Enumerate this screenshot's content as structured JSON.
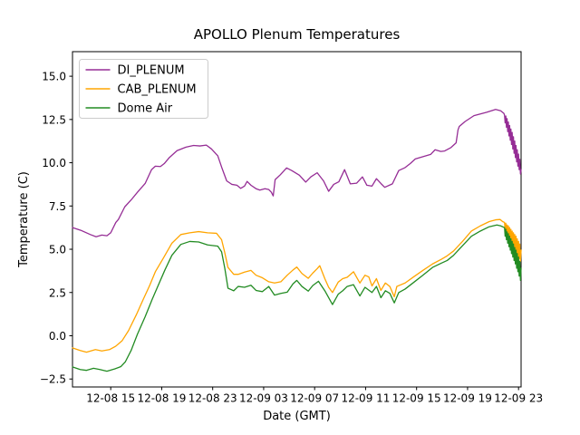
{
  "chart_data": {
    "type": "line",
    "title": "APOLLO Plenum Temperatures",
    "xlabel": "Date (GMT)",
    "ylabel": "Temperature (C)",
    "grid": false,
    "legend_position": "upper left",
    "x_unit": "hours after 12-08 00:00 GMT",
    "xlim": [
      12.0,
      47.2
    ],
    "ylim": [
      -2.96,
      16.42
    ],
    "x_ticks": [
      {
        "value": 15,
        "label": "12-08 15"
      },
      {
        "value": 19,
        "label": "12-08 19"
      },
      {
        "value": 23,
        "label": "12-08 23"
      },
      {
        "value": 27,
        "label": "12-09 03"
      },
      {
        "value": 31,
        "label": "12-09 07"
      },
      {
        "value": 35,
        "label": "12-09 11"
      },
      {
        "value": 39,
        "label": "12-09 15"
      },
      {
        "value": 43,
        "label": "12-09 19"
      },
      {
        "value": 47,
        "label": "12-09 23"
      }
    ],
    "y_ticks": [
      {
        "value": 15.0,
        "label": "15.0"
      },
      {
        "value": 12.5,
        "label": "12.5"
      },
      {
        "value": 10.0,
        "label": "10.0"
      },
      {
        "value": 7.5,
        "label": "7.5"
      },
      {
        "value": 5.0,
        "label": "5.0"
      },
      {
        "value": 2.5,
        "label": "2.5"
      },
      {
        "value": 0.0,
        "label": "0.0"
      },
      {
        "value": -2.5,
        "label": "−2.5"
      }
    ],
    "series": [
      {
        "name": "DI_PLENUM",
        "color": "#952d95",
        "points": [
          [
            12.0,
            6.25
          ],
          [
            12.7,
            6.08
          ],
          [
            13.4,
            5.85
          ],
          [
            13.85,
            5.72
          ],
          [
            14.3,
            5.82
          ],
          [
            14.7,
            5.78
          ],
          [
            15.0,
            5.95
          ],
          [
            15.4,
            6.55
          ],
          [
            15.6,
            6.72
          ],
          [
            16.1,
            7.45
          ],
          [
            16.6,
            7.85
          ],
          [
            17.1,
            8.3
          ],
          [
            17.7,
            8.8
          ],
          [
            18.2,
            9.6
          ],
          [
            18.5,
            9.8
          ],
          [
            18.9,
            9.78
          ],
          [
            19.2,
            9.95
          ],
          [
            19.6,
            10.3
          ],
          [
            20.2,
            10.7
          ],
          [
            20.9,
            10.9
          ],
          [
            21.5,
            11.0
          ],
          [
            22.0,
            10.97
          ],
          [
            22.5,
            11.02
          ],
          [
            22.9,
            10.8
          ],
          [
            23.4,
            10.4
          ],
          [
            23.7,
            9.75
          ],
          [
            24.1,
            8.95
          ],
          [
            24.5,
            8.75
          ],
          [
            24.9,
            8.7
          ],
          [
            25.2,
            8.52
          ],
          [
            25.5,
            8.65
          ],
          [
            25.7,
            8.92
          ],
          [
            26.0,
            8.7
          ],
          [
            26.4,
            8.5
          ],
          [
            26.7,
            8.42
          ],
          [
            27.1,
            8.5
          ],
          [
            27.4,
            8.45
          ],
          [
            27.6,
            8.3
          ],
          [
            27.75,
            8.08
          ],
          [
            27.9,
            9.02
          ],
          [
            28.3,
            9.3
          ],
          [
            28.8,
            9.7
          ],
          [
            29.2,
            9.55
          ],
          [
            29.8,
            9.28
          ],
          [
            30.3,
            8.88
          ],
          [
            30.7,
            9.18
          ],
          [
            31.2,
            9.42
          ],
          [
            31.7,
            8.95
          ],
          [
            32.1,
            8.35
          ],
          [
            32.5,
            8.75
          ],
          [
            32.9,
            8.9
          ],
          [
            33.35,
            9.6
          ],
          [
            33.8,
            8.78
          ],
          [
            34.3,
            8.82
          ],
          [
            34.75,
            9.18
          ],
          [
            35.1,
            8.7
          ],
          [
            35.5,
            8.65
          ],
          [
            35.85,
            9.08
          ],
          [
            36.2,
            8.8
          ],
          [
            36.5,
            8.58
          ],
          [
            37.1,
            8.78
          ],
          [
            37.6,
            9.55
          ],
          [
            38.1,
            9.72
          ],
          [
            38.5,
            9.95
          ],
          [
            38.9,
            10.22
          ],
          [
            39.5,
            10.35
          ],
          [
            40.1,
            10.48
          ],
          [
            40.45,
            10.75
          ],
          [
            40.9,
            10.65
          ],
          [
            41.2,
            10.68
          ],
          [
            41.7,
            10.88
          ],
          [
            42.1,
            11.15
          ],
          [
            42.25,
            11.9
          ],
          [
            42.35,
            12.1
          ],
          [
            42.8,
            12.38
          ],
          [
            43.5,
            12.72
          ],
          [
            44.5,
            12.92
          ],
          [
            45.2,
            13.08
          ],
          [
            45.6,
            13.0
          ],
          [
            45.85,
            12.85
          ],
          [
            45.9,
            12.75
          ],
          [
            45.95,
            12.3
          ],
          [
            46.0,
            12.7
          ],
          [
            46.05,
            12.05
          ],
          [
            46.1,
            12.55
          ],
          [
            46.15,
            11.8
          ],
          [
            46.2,
            12.35
          ],
          [
            46.25,
            11.55
          ],
          [
            46.3,
            12.15
          ],
          [
            46.35,
            11.3
          ],
          [
            46.4,
            11.95
          ],
          [
            46.45,
            11.05
          ],
          [
            46.5,
            11.75
          ],
          [
            46.55,
            10.8
          ],
          [
            46.6,
            11.5
          ],
          [
            46.65,
            10.55
          ],
          [
            46.7,
            11.25
          ],
          [
            46.75,
            10.3
          ],
          [
            46.8,
            11.0
          ],
          [
            46.85,
            10.05
          ],
          [
            46.9,
            10.75
          ],
          [
            46.95,
            9.8
          ],
          [
            47.0,
            10.5
          ],
          [
            47.05,
            9.6
          ],
          [
            47.1,
            10.2
          ],
          [
            47.15,
            9.35
          ],
          [
            47.2,
            9.6
          ]
        ]
      },
      {
        "name": "CAB_PLENUM",
        "color": "#ffa500",
        "points": [
          [
            12.0,
            -0.7
          ],
          [
            12.6,
            -0.85
          ],
          [
            13.1,
            -0.95
          ],
          [
            13.8,
            -0.8
          ],
          [
            14.3,
            -0.88
          ],
          [
            14.9,
            -0.8
          ],
          [
            15.4,
            -0.6
          ],
          [
            15.9,
            -0.28
          ],
          [
            16.4,
            0.3
          ],
          [
            17.0,
            1.2
          ],
          [
            17.55,
            2.1
          ],
          [
            18.05,
            2.9
          ],
          [
            18.5,
            3.7
          ],
          [
            19.1,
            4.45
          ],
          [
            19.8,
            5.35
          ],
          [
            20.5,
            5.85
          ],
          [
            21.2,
            5.95
          ],
          [
            21.9,
            6.02
          ],
          [
            22.6,
            5.95
          ],
          [
            23.3,
            5.92
          ],
          [
            23.7,
            5.55
          ],
          [
            23.95,
            4.8
          ],
          [
            24.2,
            3.95
          ],
          [
            24.65,
            3.55
          ],
          [
            25.0,
            3.55
          ],
          [
            25.5,
            3.68
          ],
          [
            26.0,
            3.78
          ],
          [
            26.4,
            3.5
          ],
          [
            26.9,
            3.35
          ],
          [
            27.4,
            3.12
          ],
          [
            27.85,
            3.05
          ],
          [
            28.35,
            3.12
          ],
          [
            28.85,
            3.5
          ],
          [
            29.3,
            3.8
          ],
          [
            29.6,
            3.97
          ],
          [
            30.0,
            3.6
          ],
          [
            30.5,
            3.32
          ],
          [
            30.85,
            3.62
          ],
          [
            31.2,
            3.88
          ],
          [
            31.4,
            4.05
          ],
          [
            31.8,
            3.3
          ],
          [
            32.1,
            2.8
          ],
          [
            32.4,
            2.5
          ],
          [
            32.85,
            3.1
          ],
          [
            33.2,
            3.3
          ],
          [
            33.55,
            3.38
          ],
          [
            34.05,
            3.7
          ],
          [
            34.55,
            3.05
          ],
          [
            34.95,
            3.5
          ],
          [
            35.25,
            3.4
          ],
          [
            35.5,
            2.88
          ],
          [
            35.85,
            3.3
          ],
          [
            36.2,
            2.62
          ],
          [
            36.55,
            3.05
          ],
          [
            36.9,
            2.85
          ],
          [
            37.25,
            2.25
          ],
          [
            37.45,
            2.85
          ],
          [
            38.1,
            3.05
          ],
          [
            38.8,
            3.42
          ],
          [
            39.5,
            3.78
          ],
          [
            40.25,
            4.15
          ],
          [
            40.95,
            4.42
          ],
          [
            41.4,
            4.62
          ],
          [
            41.9,
            4.9
          ],
          [
            42.6,
            5.45
          ],
          [
            43.3,
            6.05
          ],
          [
            44.0,
            6.35
          ],
          [
            44.7,
            6.6
          ],
          [
            45.2,
            6.7
          ],
          [
            45.55,
            6.72
          ],
          [
            45.75,
            6.6
          ],
          [
            45.9,
            6.55
          ],
          [
            45.95,
            6.1
          ],
          [
            46.0,
            6.5
          ],
          [
            46.05,
            5.95
          ],
          [
            46.1,
            6.4
          ],
          [
            46.15,
            5.8
          ],
          [
            46.2,
            6.35
          ],
          [
            46.25,
            5.65
          ],
          [
            46.3,
            6.25
          ],
          [
            46.35,
            5.5
          ],
          [
            46.4,
            6.15
          ],
          [
            46.45,
            5.35
          ],
          [
            46.5,
            6.05
          ],
          [
            46.55,
            5.2
          ],
          [
            46.6,
            5.95
          ],
          [
            46.65,
            5.05
          ],
          [
            46.7,
            5.85
          ],
          [
            46.75,
            4.9
          ],
          [
            46.8,
            5.75
          ],
          [
            46.85,
            4.75
          ],
          [
            46.9,
            5.6
          ],
          [
            46.95,
            4.6
          ],
          [
            47.0,
            5.45
          ],
          [
            47.05,
            4.45
          ],
          [
            47.1,
            5.3
          ],
          [
            47.15,
            4.3
          ],
          [
            47.2,
            4.95
          ]
        ]
      },
      {
        "name": "Dome Air",
        "color": "#228b22",
        "points": [
          [
            12.0,
            -1.8
          ],
          [
            12.6,
            -1.95
          ],
          [
            13.1,
            -2.0
          ],
          [
            13.65,
            -1.88
          ],
          [
            14.15,
            -1.95
          ],
          [
            14.7,
            -2.05
          ],
          [
            15.3,
            -1.92
          ],
          [
            15.8,
            -1.78
          ],
          [
            16.15,
            -1.5
          ],
          [
            16.6,
            -0.85
          ],
          [
            17.1,
            0.1
          ],
          [
            17.7,
            1.1
          ],
          [
            18.25,
            2.1
          ],
          [
            18.75,
            2.95
          ],
          [
            19.25,
            3.8
          ],
          [
            19.8,
            4.65
          ],
          [
            20.5,
            5.28
          ],
          [
            21.2,
            5.45
          ],
          [
            21.9,
            5.42
          ],
          [
            22.6,
            5.25
          ],
          [
            23.4,
            5.18
          ],
          [
            23.7,
            4.85
          ],
          [
            23.95,
            3.9
          ],
          [
            24.2,
            2.75
          ],
          [
            24.65,
            2.6
          ],
          [
            25.0,
            2.85
          ],
          [
            25.5,
            2.8
          ],
          [
            26.0,
            2.92
          ],
          [
            26.4,
            2.62
          ],
          [
            26.9,
            2.55
          ],
          [
            27.4,
            2.85
          ],
          [
            27.85,
            2.35
          ],
          [
            28.35,
            2.45
          ],
          [
            28.85,
            2.52
          ],
          [
            29.3,
            3.0
          ],
          [
            29.6,
            3.2
          ],
          [
            30.0,
            2.85
          ],
          [
            30.5,
            2.58
          ],
          [
            30.85,
            2.9
          ],
          [
            31.3,
            3.15
          ],
          [
            31.8,
            2.6
          ],
          [
            32.1,
            2.2
          ],
          [
            32.4,
            1.8
          ],
          [
            32.85,
            2.4
          ],
          [
            33.2,
            2.6
          ],
          [
            33.55,
            2.85
          ],
          [
            34.05,
            2.95
          ],
          [
            34.55,
            2.3
          ],
          [
            34.95,
            2.8
          ],
          [
            35.5,
            2.5
          ],
          [
            35.85,
            2.85
          ],
          [
            36.2,
            2.2
          ],
          [
            36.55,
            2.6
          ],
          [
            36.9,
            2.45
          ],
          [
            37.25,
            1.9
          ],
          [
            37.6,
            2.5
          ],
          [
            38.1,
            2.7
          ],
          [
            38.8,
            3.1
          ],
          [
            39.5,
            3.5
          ],
          [
            40.25,
            3.95
          ],
          [
            40.95,
            4.2
          ],
          [
            41.4,
            4.35
          ],
          [
            41.9,
            4.65
          ],
          [
            42.6,
            5.2
          ],
          [
            43.3,
            5.75
          ],
          [
            44.0,
            6.05
          ],
          [
            44.7,
            6.3
          ],
          [
            45.3,
            6.4
          ],
          [
            45.6,
            6.35
          ],
          [
            45.9,
            6.25
          ],
          [
            45.95,
            5.75
          ],
          [
            46.0,
            6.15
          ],
          [
            46.05,
            5.55
          ],
          [
            46.1,
            6.0
          ],
          [
            46.15,
            5.35
          ],
          [
            46.2,
            5.9
          ],
          [
            46.25,
            5.15
          ],
          [
            46.3,
            5.75
          ],
          [
            46.35,
            4.95
          ],
          [
            46.4,
            5.6
          ],
          [
            46.45,
            4.75
          ],
          [
            46.5,
            5.45
          ],
          [
            46.55,
            4.55
          ],
          [
            46.6,
            5.3
          ],
          [
            46.65,
            4.35
          ],
          [
            46.7,
            5.1
          ],
          [
            46.75,
            4.15
          ],
          [
            46.8,
            4.95
          ],
          [
            46.85,
            3.9
          ],
          [
            46.9,
            4.75
          ],
          [
            46.95,
            3.7
          ],
          [
            47.0,
            4.55
          ],
          [
            47.05,
            3.45
          ],
          [
            47.1,
            4.3
          ],
          [
            47.15,
            3.2
          ],
          [
            47.2,
            3.9
          ]
        ]
      }
    ]
  }
}
